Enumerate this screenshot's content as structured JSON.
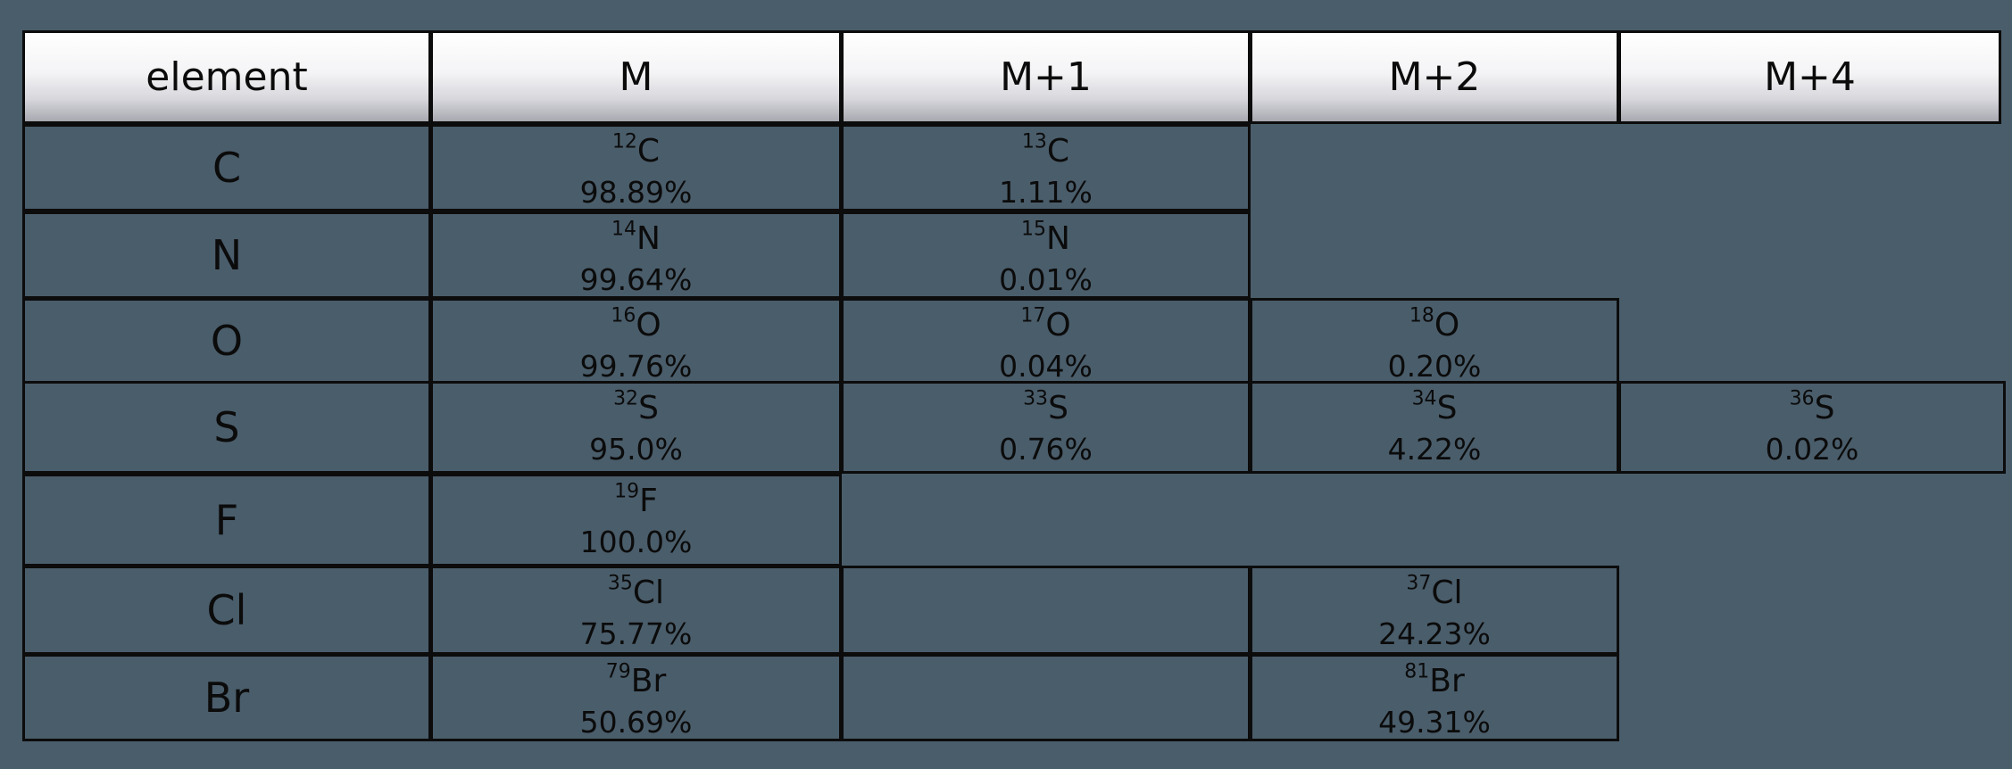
{
  "headers": {
    "element": "element",
    "m": "M",
    "m1": "M+1",
    "m2": "M+2",
    "m4": "M+4"
  },
  "rows": [
    {
      "element": "C",
      "m": {
        "mass": "12",
        "symbol": "C",
        "abundance": "98.89%"
      },
      "m1": {
        "mass": "13",
        "symbol": "C",
        "abundance": "1.11%"
      }
    },
    {
      "element": "N",
      "m": {
        "mass": "14",
        "symbol": "N",
        "abundance": "99.64%"
      },
      "m1": {
        "mass": "15",
        "symbol": "N",
        "abundance": "0.01%"
      }
    },
    {
      "element": "O",
      "m": {
        "mass": "16",
        "symbol": "O",
        "abundance": "99.76%"
      },
      "m1": {
        "mass": "17",
        "symbol": "O",
        "abundance": "0.04%"
      },
      "m2": {
        "mass": "18",
        "symbol": "O",
        "abundance": "0.20%"
      }
    },
    {
      "element": "S",
      "m": {
        "mass": "32",
        "symbol": "S",
        "abundance": "95.0%"
      },
      "m1": {
        "mass": "33",
        "symbol": "S",
        "abundance": "0.76%"
      },
      "m2": {
        "mass": "34",
        "symbol": "S",
        "abundance": "4.22%"
      },
      "m4": {
        "mass": "36",
        "symbol": "S",
        "abundance": "0.02%"
      }
    },
    {
      "element": "F",
      "m": {
        "mass": "19",
        "symbol": "F",
        "abundance": "100.0%"
      }
    },
    {
      "element": "Cl",
      "m": {
        "mass": "35",
        "symbol": "Cl",
        "abundance": "75.77%"
      },
      "m2": {
        "mass": "37",
        "symbol": "Cl",
        "abundance": "24.23%"
      }
    },
    {
      "element": "Br",
      "m": {
        "mass": "79",
        "symbol": "Br",
        "abundance": "50.69%"
      },
      "m2": {
        "mass": "81",
        "symbol": "Br",
        "abundance": "49.31%"
      }
    }
  ]
}
